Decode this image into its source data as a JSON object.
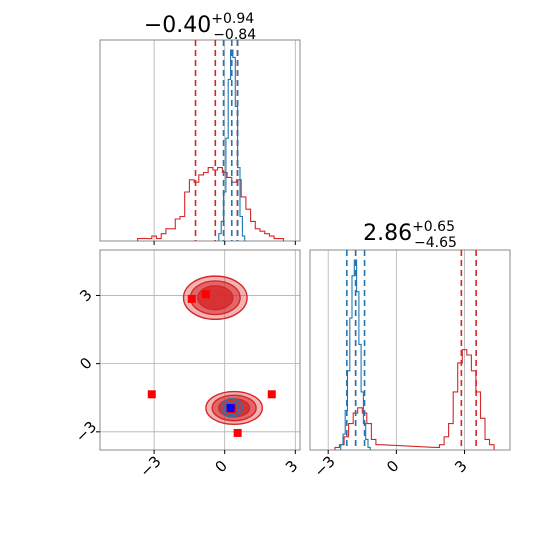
{
  "chart_data": {
    "type": "corner",
    "titles": {
      "x1": {
        "median": "−0.40",
        "plus": "+0.94",
        "minus": "−0.84"
      },
      "x2": {
        "median": "2.86",
        "plus": "+0.65",
        "minus": "−4.65"
      }
    },
    "axis": {
      "x1_range": [
        -5.3,
        3.2
      ],
      "x2_range": [
        -3.8,
        5.0
      ],
      "x1_ticks": [
        -3,
        0,
        3
      ],
      "x2_ticks": [
        -3,
        0,
        3
      ],
      "x1_tick_labels": [
        "−3",
        "0",
        "3"
      ],
      "x2_tick_labels": [
        "−3",
        "0",
        "3"
      ]
    },
    "grid": true,
    "colors": {
      "red": "#d62728",
      "blue": "#1f77b4",
      "marker_red": "#ff0000",
      "marker_blue": "#0000ff",
      "frame": "#888888"
    },
    "series": [
      {
        "color": "red",
        "hist_x1": {
          "centers": [
            -3.6,
            -3.4,
            -3.2,
            -3.0,
            -2.8,
            -2.6,
            -2.4,
            -2.2,
            -2.0,
            -1.8,
            -1.6,
            -1.4,
            -1.2,
            -1.0,
            -0.8,
            -0.6,
            -0.4,
            -0.2,
            0.0,
            0.2,
            0.4,
            0.6,
            0.8,
            1.0,
            1.2,
            1.4,
            1.6,
            1.8,
            2.0,
            2.2,
            2.4
          ],
          "counts": [
            0.01,
            0.01,
            0.01,
            0.02,
            0.01,
            0.03,
            0.05,
            0.05,
            0.09,
            0.1,
            0.2,
            0.25,
            0.24,
            0.27,
            0.28,
            0.3,
            0.29,
            0.3,
            0.28,
            0.26,
            0.24,
            0.25,
            0.18,
            0.13,
            0.08,
            0.05,
            0.04,
            0.03,
            0.02,
            0.01,
            0.01
          ]
        },
        "quantiles_x1": [
          -1.24,
          -0.4,
          0.54
        ],
        "hist_x2": {
          "centers": [
            -2.6,
            -2.4,
            -2.2,
            -2.0,
            -1.8,
            -1.6,
            -1.4,
            -1.2,
            -1.0,
            -0.8,
            1.8,
            2.0,
            2.2,
            2.4,
            2.6,
            2.8,
            3.0,
            3.2,
            3.4,
            3.6,
            3.8,
            4.0,
            4.2
          ],
          "counts": [
            0.01,
            0.02,
            0.05,
            0.1,
            0.14,
            0.16,
            0.14,
            0.1,
            0.04,
            0.02,
            0.01,
            0.02,
            0.05,
            0.1,
            0.22,
            0.33,
            0.38,
            0.36,
            0.3,
            0.22,
            0.12,
            0.04,
            0.02
          ]
        },
        "quantiles_x2": [
          -1.79,
          2.86,
          3.51
        ],
        "clusters": [
          {
            "cx": -0.4,
            "cy": 2.9,
            "rx": 1.35,
            "ry": 0.95,
            "levels": [
              1.0,
              0.78,
              0.55
            ]
          },
          {
            "cx": 0.4,
            "cy": -1.95,
            "rx": 1.2,
            "ry": 0.72,
            "levels": [
              1.0,
              0.78,
              0.55
            ]
          }
        ],
        "points": [
          [
            -1.4,
            2.85
          ],
          [
            -0.8,
            3.05
          ],
          [
            -3.1,
            -1.35
          ],
          [
            2.0,
            -1.35
          ],
          [
            0.55,
            -3.05
          ],
          [
            0.3,
            -2.0
          ]
        ]
      },
      {
        "color": "blue",
        "hist_x1": {
          "centers": [
            -0.2,
            -0.1,
            0.0,
            0.1,
            0.2,
            0.3,
            0.4,
            0.5,
            0.6,
            0.7,
            0.8
          ],
          "counts": [
            0.03,
            0.08,
            0.2,
            0.42,
            0.66,
            0.78,
            0.75,
            0.55,
            0.3,
            0.1,
            0.02
          ]
        },
        "quantiles_x1": [
          -0.05,
          0.3,
          0.55
        ],
        "hist_x2": {
          "centers": [
            -2.4,
            -2.3,
            -2.2,
            -2.1,
            -2.0,
            -1.9,
            -1.8,
            -1.7,
            -1.6,
            -1.5,
            -1.4,
            -1.3,
            -1.2
          ],
          "counts": [
            0.02,
            0.06,
            0.15,
            0.3,
            0.5,
            0.66,
            0.72,
            0.6,
            0.4,
            0.22,
            0.1,
            0.04,
            0.01
          ]
        },
        "quantiles_x2": [
          -2.18,
          -1.79,
          -1.4
        ],
        "clusters": [
          {
            "cx": 0.3,
            "cy": -1.95,
            "rx": 0.45,
            "ry": 0.4,
            "levels": [
              1.0,
              0.7
            ]
          }
        ],
        "points": [
          [
            0.25,
            -1.95
          ]
        ]
      }
    ]
  }
}
